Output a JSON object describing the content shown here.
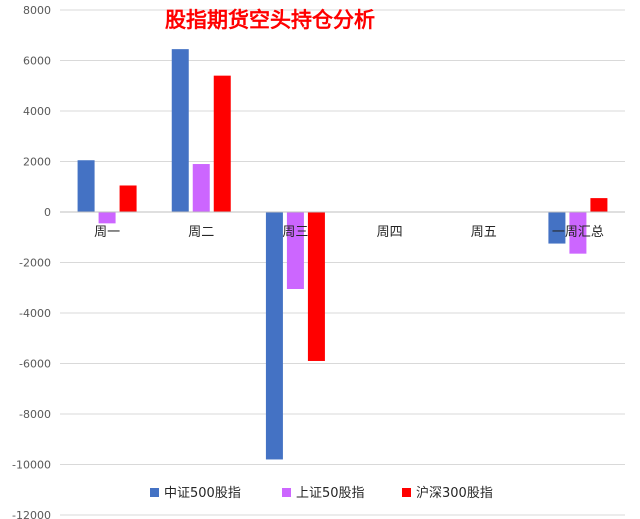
{
  "chart_data": {
    "type": "bar",
    "title": "股指期货空头持仓分析",
    "categories": [
      "周一",
      "周二",
      "周三",
      "周四",
      "周五",
      "一周汇总"
    ],
    "series": [
      {
        "name": "中证500股指",
        "color": "#4472C4",
        "values": [
          2050,
          6450,
          -9800,
          0,
          0,
          -1250
        ]
      },
      {
        "name": "上证50股指",
        "color": "#CC66FF",
        "values": [
          -450,
          1900,
          -3050,
          0,
          0,
          -1650
        ]
      },
      {
        "name": "沪深300股指",
        "color": "#FF0000",
        "values": [
          1050,
          5400,
          -5900,
          0,
          0,
          550
        ]
      }
    ],
    "xlabel": "",
    "ylabel": "",
    "ylim": [
      -12000,
      8000
    ],
    "yticks": [
      8000,
      6000,
      4000,
      2000,
      0,
      -2000,
      -4000,
      -6000,
      -8000,
      -10000,
      -12000
    ],
    "ytick_labels": [
      "8000",
      "6000",
      "4000",
      "2000",
      "0",
      "-2000",
      "-4000",
      "-6000",
      "-8000",
      "-10000",
      "-12000"
    ],
    "grid": true,
    "legend_position": "bottom",
    "title_color": "#FF0000"
  }
}
